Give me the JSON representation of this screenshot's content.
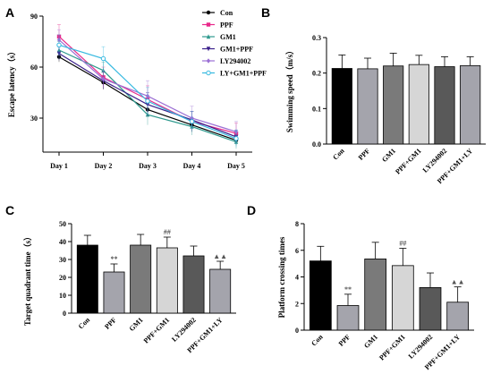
{
  "chart_data": [
    {
      "id": "A",
      "type": "line",
      "panel_label": "A",
      "ylabel": "Escape latency（s）",
      "categories": [
        "Day 1",
        "Day 2",
        "Day 3",
        "Day 4",
        "Day 5"
      ],
      "ylim": [
        10,
        90
      ],
      "yticks": [
        30,
        60,
        90
      ],
      "legend_position": "top-right",
      "series": [
        {
          "name": "Con",
          "color": "#000000",
          "marker": "circle",
          "values": [
            66,
            51,
            35,
            26,
            17
          ],
          "errors": [
            3,
            4,
            4,
            4,
            3
          ]
        },
        {
          "name": "PPF",
          "color": "#e8288a",
          "marker": "square",
          "values": [
            78,
            54,
            41,
            28,
            21
          ],
          "errors": [
            7,
            6,
            8,
            6,
            6
          ]
        },
        {
          "name": "GM1",
          "color": "#2f9a8e",
          "marker": "triangle",
          "values": [
            70,
            58,
            32,
            25,
            16
          ],
          "errors": [
            5,
            5,
            6,
            5,
            4
          ]
        },
        {
          "name": "GM1+PPF",
          "color": "#3a1f8a",
          "marker": "triangle-down",
          "values": [
            68,
            52,
            38,
            29,
            19
          ],
          "errors": [
            4,
            5,
            7,
            5,
            4
          ]
        },
        {
          "name": "LY294002",
          "color": "#9b6fd4",
          "marker": "diamond",
          "values": [
            76,
            53,
            43,
            30,
            22
          ],
          "errors": [
            6,
            5,
            9,
            7,
            6
          ]
        },
        {
          "name": "LY+GM1+PPF",
          "color": "#36b9e0",
          "marker": "circle-open",
          "values": [
            73,
            65,
            40,
            28,
            18
          ],
          "errors": [
            6,
            7,
            8,
            6,
            5
          ]
        }
      ]
    },
    {
      "id": "B",
      "type": "bar",
      "panel_label": "B",
      "ylabel": "Swimming speed（m/s）",
      "categories": [
        "Con",
        "PPF",
        "GM1",
        "PPF+GM1",
        "LY294002",
        "PPF+GM1+LY"
      ],
      "values": [
        0.213,
        0.212,
        0.22,
        0.224,
        0.218,
        0.221
      ],
      "errors": [
        0.038,
        0.03,
        0.036,
        0.026,
        0.028,
        0.025
      ],
      "colors": [
        "#000000",
        "#a4a4ac",
        "#7a7a7a",
        "#d6d6d6",
        "#595959",
        "#a4a4ac"
      ],
      "ylim": [
        0,
        0.3
      ],
      "yticks": [
        "0.0",
        "0.1",
        "0.2",
        "0.3"
      ],
      "annotations": [
        "",
        "",
        "",
        "",
        "",
        ""
      ]
    },
    {
      "id": "C",
      "type": "bar",
      "panel_label": "C",
      "ylabel": "Target quadrant time（s）",
      "categories": [
        "Con",
        "PPF",
        "GM1",
        "PPF+GM1",
        "LY294002",
        "PPF+GM1+LY"
      ],
      "values": [
        38,
        23,
        38,
        36.5,
        32,
        24.5
      ],
      "errors": [
        5.5,
        4.5,
        6,
        6,
        5.5,
        4.5
      ],
      "colors": [
        "#000000",
        "#a4a4ac",
        "#7a7a7a",
        "#d6d6d6",
        "#595959",
        "#a4a4ac"
      ],
      "ylim": [
        0,
        50
      ],
      "yticks": [
        "0",
        "10",
        "20",
        "30",
        "40",
        "50"
      ],
      "annotations": [
        "",
        "**",
        "",
        "##",
        "",
        "▲▲"
      ]
    },
    {
      "id": "D",
      "type": "bar",
      "panel_label": "D",
      "ylabel": "Platform crossing times",
      "categories": [
        "Con",
        "PPF",
        "GM1",
        "PPF+GM1",
        "LY294002",
        "PPF+GM1+LY"
      ],
      "values": [
        5.2,
        1.85,
        5.35,
        4.85,
        3.2,
        2.1
      ],
      "errors": [
        1.1,
        0.85,
        1.25,
        1.3,
        1.1,
        1.15
      ],
      "colors": [
        "#000000",
        "#a4a4ac",
        "#7a7a7a",
        "#d6d6d6",
        "#595959",
        "#a4a4ac"
      ],
      "ylim": [
        0,
        8
      ],
      "yticks": [
        "0",
        "2",
        "4",
        "6",
        "8"
      ],
      "annotations": [
        "",
        "**",
        "",
        "##",
        "",
        "▲▲"
      ]
    }
  ]
}
